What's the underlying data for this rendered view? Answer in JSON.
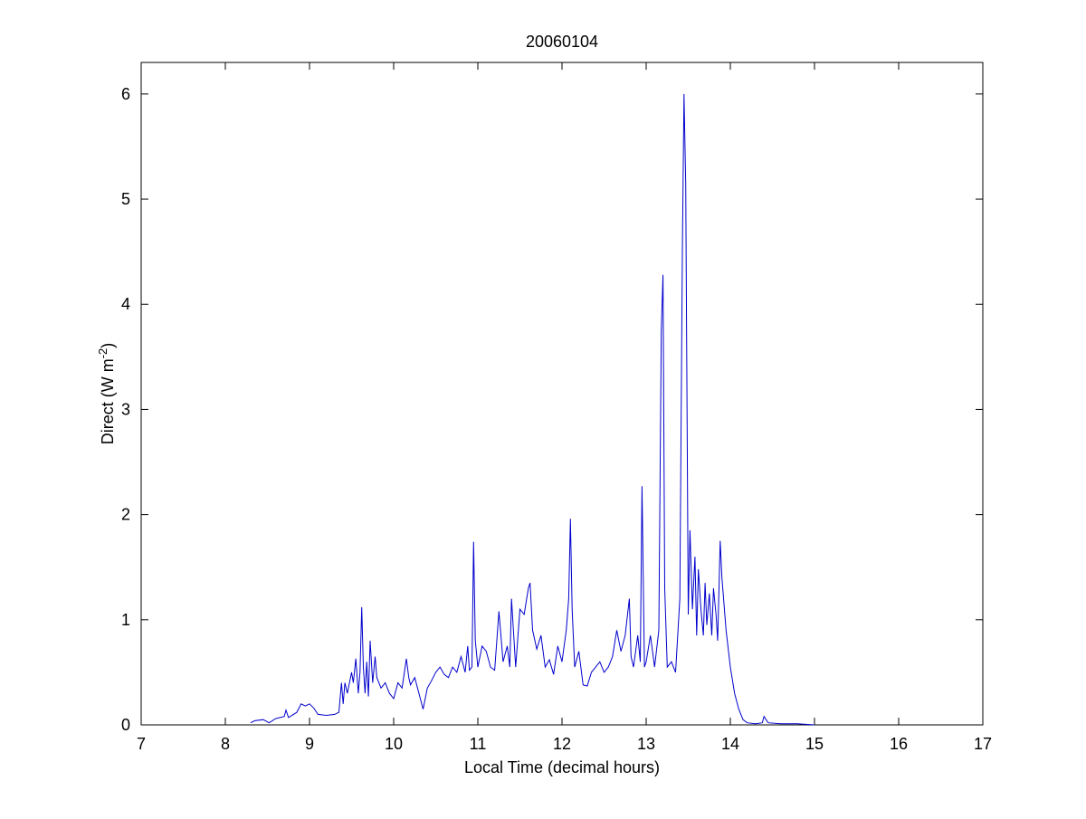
{
  "chart_data": {
    "type": "line",
    "title": "20060104",
    "xlabel": "Local Time (decimal hours)",
    "ylabel": "Direct (W m",
    "ylabel_sup": "-2",
    "ylabel_close": ")",
    "xlim": [
      7,
      17
    ],
    "ylim": [
      0,
      6.3
    ],
    "xticks": [
      "7",
      "8",
      "9",
      "10",
      "11",
      "12",
      "13",
      "14",
      "15",
      "16",
      "17"
    ],
    "yticks": [
      "0",
      "1",
      "2",
      "3",
      "4",
      "5",
      "6"
    ],
    "grid": false,
    "line_color": "#0000cc",
    "series": [
      {
        "x": [
          8.3,
          8.35,
          8.45,
          8.52,
          8.6,
          8.7,
          8.72,
          8.75,
          8.85,
          8.9,
          8.95,
          9.0,
          9.05,
          9.1,
          9.2,
          9.3,
          9.35,
          9.38,
          9.4,
          9.42,
          9.45,
          9.5,
          9.52,
          9.55,
          9.58,
          9.6,
          9.62,
          9.64,
          9.66,
          9.68,
          9.7,
          9.72,
          9.75,
          9.78,
          9.8,
          9.85,
          9.9,
          9.95,
          10.0,
          10.05,
          10.1,
          10.15,
          10.18,
          10.2,
          10.25,
          10.3,
          10.35,
          10.4,
          10.45,
          10.5,
          10.55,
          10.6,
          10.65,
          10.7,
          10.75,
          10.8,
          10.85,
          10.88,
          10.9,
          10.93,
          10.95,
          10.97,
          11.0,
          11.05,
          11.1,
          11.15,
          11.2,
          11.25,
          11.3,
          11.35,
          11.38,
          11.4,
          11.45,
          11.5,
          11.55,
          11.6,
          11.62,
          11.65,
          11.7,
          11.75,
          11.8,
          11.85,
          11.9,
          11.95,
          12.0,
          12.05,
          12.08,
          12.1,
          12.12,
          12.15,
          12.2,
          12.25,
          12.3,
          12.35,
          12.4,
          12.45,
          12.5,
          12.55,
          12.6,
          12.65,
          12.7,
          12.75,
          12.8,
          12.82,
          12.85,
          12.9,
          12.93,
          12.95,
          12.98,
          13.0,
          13.05,
          13.1,
          13.15,
          13.18,
          13.2,
          13.22,
          13.25,
          13.3,
          13.35,
          13.4,
          13.43,
          13.45,
          13.47,
          13.5,
          13.52,
          13.55,
          13.58,
          13.6,
          13.62,
          13.65,
          13.68,
          13.7,
          13.72,
          13.75,
          13.78,
          13.8,
          13.83,
          13.85,
          13.88,
          13.9,
          13.95,
          14.0,
          14.05,
          14.1,
          14.15,
          14.2,
          14.3,
          14.38,
          14.4,
          14.45,
          14.6,
          14.8,
          15.0
        ],
        "values": [
          0.02,
          0.04,
          0.05,
          0.02,
          0.06,
          0.08,
          0.14,
          0.07,
          0.12,
          0.2,
          0.18,
          0.2,
          0.16,
          0.1,
          0.09,
          0.1,
          0.12,
          0.4,
          0.2,
          0.4,
          0.3,
          0.5,
          0.4,
          0.63,
          0.3,
          0.5,
          1.12,
          0.55,
          0.3,
          0.6,
          0.27,
          0.8,
          0.4,
          0.65,
          0.45,
          0.35,
          0.4,
          0.3,
          0.25,
          0.4,
          0.35,
          0.63,
          0.45,
          0.38,
          0.45,
          0.3,
          0.15,
          0.35,
          0.42,
          0.5,
          0.55,
          0.48,
          0.45,
          0.55,
          0.5,
          0.65,
          0.5,
          0.75,
          0.52,
          0.55,
          1.74,
          0.8,
          0.55,
          0.75,
          0.7,
          0.55,
          0.52,
          1.08,
          0.6,
          0.75,
          0.55,
          1.2,
          0.55,
          1.1,
          1.05,
          1.3,
          1.35,
          0.9,
          0.72,
          0.85,
          0.55,
          0.62,
          0.48,
          0.75,
          0.6,
          0.9,
          1.2,
          1.96,
          1.1,
          0.55,
          0.7,
          0.38,
          0.37,
          0.5,
          0.55,
          0.6,
          0.5,
          0.55,
          0.65,
          0.9,
          0.7,
          0.85,
          1.2,
          0.65,
          0.55,
          0.85,
          0.6,
          2.27,
          0.55,
          0.6,
          0.85,
          0.55,
          0.9,
          3.75,
          4.28,
          1.3,
          0.55,
          0.6,
          0.5,
          1.2,
          4.5,
          6.0,
          5.15,
          1.05,
          1.85,
          1.1,
          1.6,
          0.85,
          1.48,
          1.1,
          0.85,
          1.35,
          0.95,
          1.25,
          0.85,
          1.3,
          1.05,
          0.8,
          1.75,
          1.4,
          0.9,
          0.55,
          0.3,
          0.15,
          0.05,
          0.02,
          0.01,
          0.02,
          0.08,
          0.02,
          0.01,
          0.01,
          0.0
        ]
      }
    ]
  }
}
